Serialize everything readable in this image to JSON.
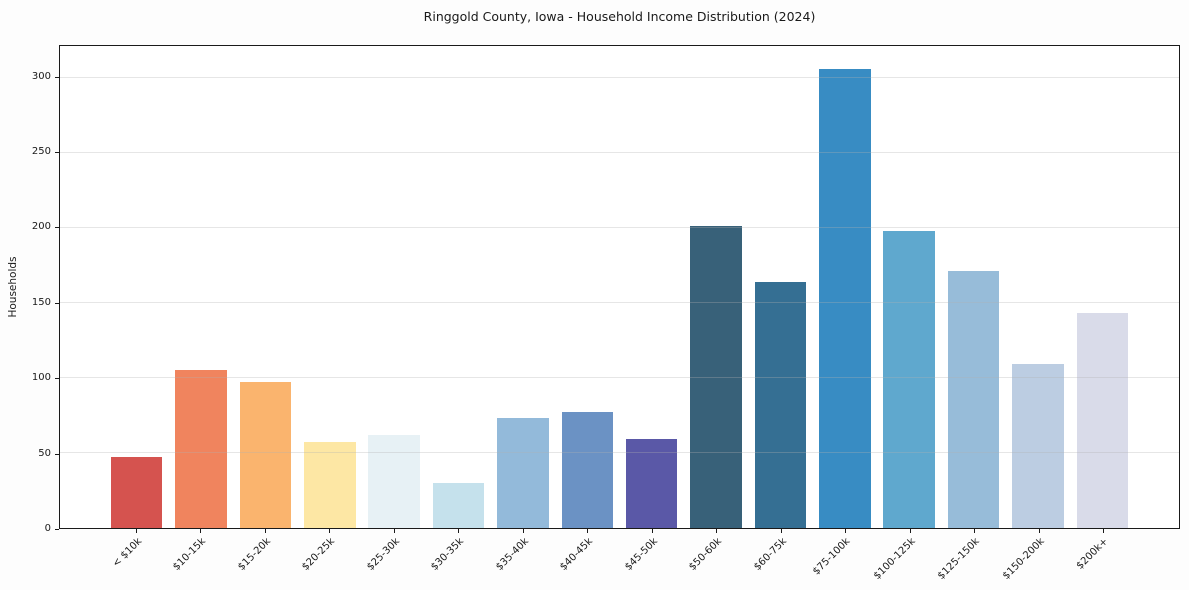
{
  "figure": {
    "background": "#fdfdfd",
    "axes_background": "#ffffff",
    "spine_color": "#1a1a1a",
    "grid_color_rgba": "rgba(176,176,176,0.32)",
    "text_color": "#1a1a1a"
  },
  "chart_data": {
    "type": "bar",
    "title": "Ringgold County, Iowa - Household Income Distribution (2024)",
    "xlabel": "",
    "ylabel": "Households",
    "categories": [
      "< $10k",
      "$10-15k",
      "$15-20k",
      "$20-25k",
      "$25-30k",
      "$30-35k",
      "$35-40k",
      "$40-45k",
      "$45-50k",
      "$50-60k",
      "$60-75k",
      "$75-100k",
      "$100-125k",
      "$125-150k",
      "$150-200k",
      "$200k+"
    ],
    "values": [
      47,
      105,
      97,
      57,
      62,
      30,
      73,
      77,
      59,
      201,
      164,
      306,
      198,
      171,
      109,
      143
    ],
    "bar_colors": [
      "#d5534f",
      "#f0845e",
      "#fab46e",
      "#fde7a4",
      "#e7f1f5",
      "#c5e1ec",
      "#93bada",
      "#6b92c4",
      "#5a58a7",
      "#386179",
      "#356f93",
      "#388cc3",
      "#5fa8ce",
      "#97bcd9",
      "#bccde2",
      "#d9dbe9"
    ],
    "ylim": [
      0,
      321
    ],
    "yticks": [
      0,
      50,
      100,
      150,
      200,
      250,
      300
    ],
    "grid": "horizontal-only",
    "legend_position": "none",
    "x_tick_rotation": 45
  }
}
